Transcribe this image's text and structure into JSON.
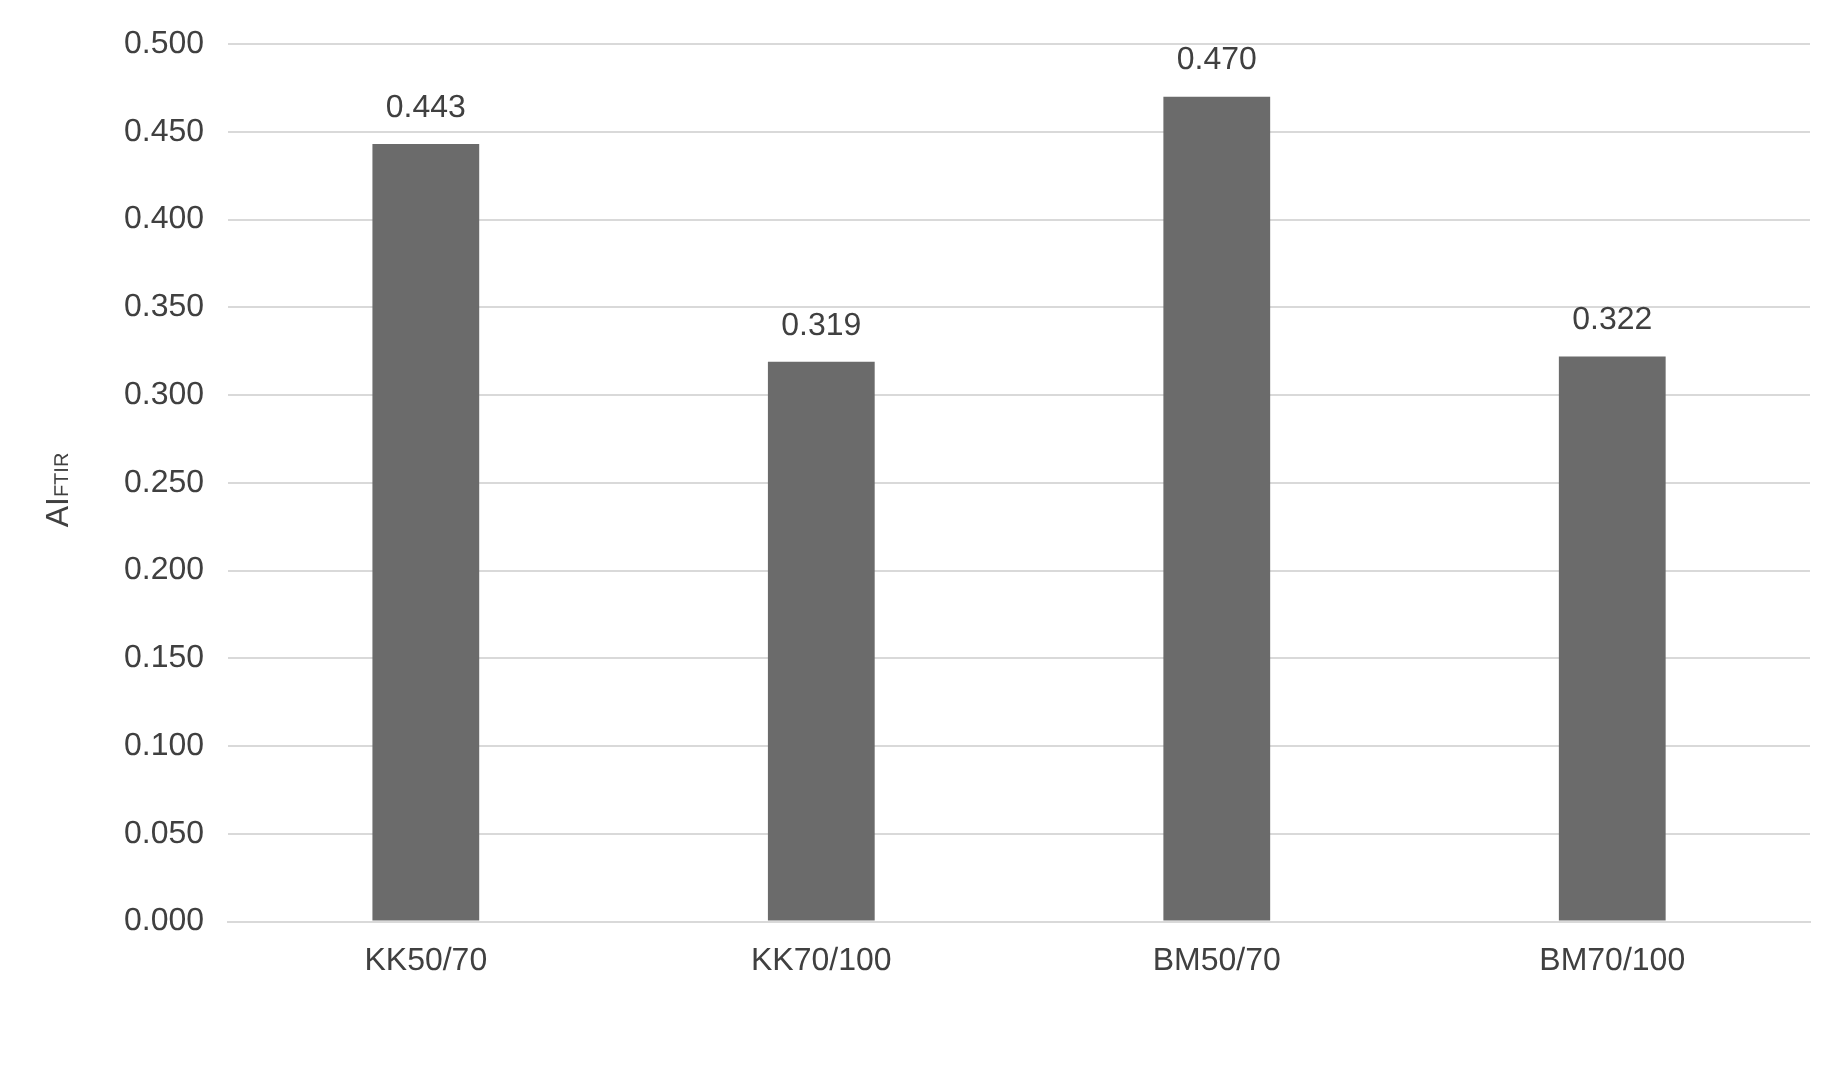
{
  "chart_data": {
    "type": "bar",
    "ylabel": "AI$_{FTIR}$",
    "categories": [
      "KK50/70",
      "KK70/100",
      "BM50/70",
      "BM70/100"
    ],
    "values": [
      0.443,
      0.319,
      0.47,
      0.322
    ],
    "value_labels": [
      "0.443",
      "0.319",
      "0.470",
      "0.322"
    ],
    "color": "#6b6b6b",
    "ylim": [
      0,
      0.5
    ],
    "yticks": [
      {
        "value": 0,
        "label": "0.000"
      },
      {
        "value": 0.05,
        "label": "0.050"
      },
      {
        "value": 0.1,
        "label": "0.100"
      },
      {
        "value": 0.15,
        "label": "0.150"
      },
      {
        "value": 0.2,
        "label": "0.200"
      },
      {
        "value": 0.25,
        "label": "0.250"
      },
      {
        "value": 0.3,
        "label": "0.300"
      },
      {
        "value": 0.35,
        "label": "0.350"
      },
      {
        "value": 0.4,
        "label": "0.400"
      },
      {
        "value": 0.45,
        "label": "0.450"
      },
      {
        "value": 0.5,
        "label": "0.500"
      }
    ],
    "grid": "y",
    "legend": false
  }
}
